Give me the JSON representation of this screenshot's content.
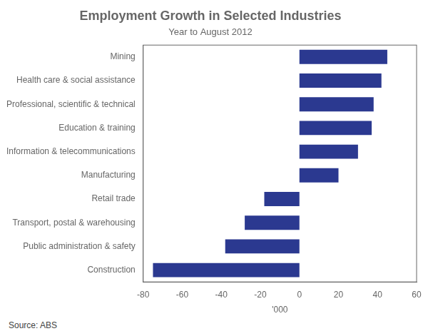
{
  "chart_data": {
    "type": "bar",
    "orientation": "horizontal",
    "title": "Employment Growth in Selected Industries",
    "subtitle": "Year to August 2012",
    "categories": [
      "Mining",
      "Health care & social assistance",
      "Professional, scientific & technical",
      "Education & training",
      "Information & telecommunications",
      "Manufacturing",
      "Retail trade",
      "Transport, postal & warehousing",
      "Public administration & safety",
      "Construction"
    ],
    "values": [
      45,
      42,
      38,
      37,
      30,
      20,
      -18,
      -28,
      -38,
      -75
    ],
    "color": "#2B3990",
    "xlim": [
      -80,
      60
    ],
    "xticks": [
      -80,
      -60,
      -40,
      -20,
      0,
      20,
      40,
      60
    ],
    "xlabel": "'000",
    "source": "Source: ABS",
    "grid": false
  }
}
